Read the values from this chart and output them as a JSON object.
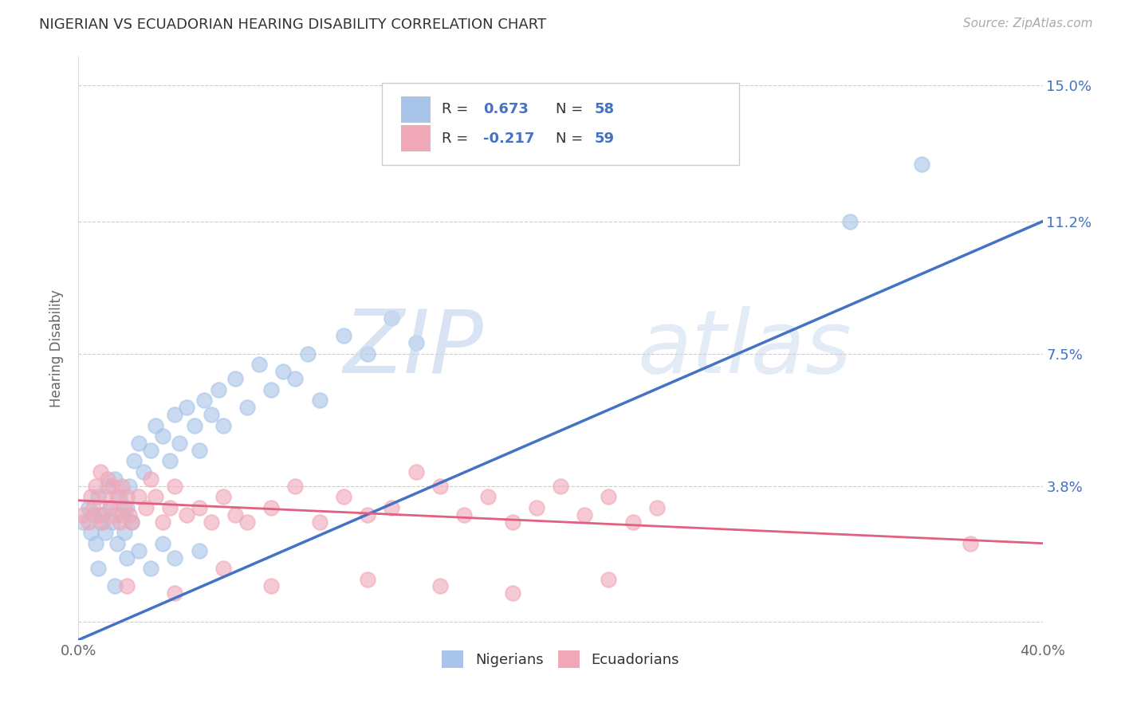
{
  "title": "NIGERIAN VS ECUADORIAN HEARING DISABILITY CORRELATION CHART",
  "source": "Source: ZipAtlas.com",
  "ylabel": "Hearing Disability",
  "xmin": 0.0,
  "xmax": 0.4,
  "ymin": -0.005,
  "ymax": 0.158,
  "yticks": [
    0.0,
    0.038,
    0.075,
    0.112,
    0.15
  ],
  "ytick_labels": [
    "",
    "3.8%",
    "7.5%",
    "11.2%",
    "15.0%"
  ],
  "xtick_labels": [
    "0.0%",
    "40.0%"
  ],
  "background_color": "#ffffff",
  "grid_color": "#cccccc",
  "nigerian_color": "#a8c4e8",
  "ecuadorian_color": "#f0a8b8",
  "blue_line_color": "#4472c4",
  "pink_line_color": "#e06080",
  "watermark_color": "#c8d8f0",
  "legend_R_N_color": "#4472c4",
  "R_text_color": "#333333",
  "R_nigerian": 0.673,
  "N_nigerian": 58,
  "R_ecuadorian": -0.217,
  "N_ecuadorian": 59,
  "nigerian_scatter": [
    [
      0.002,
      0.028
    ],
    [
      0.004,
      0.032
    ],
    [
      0.005,
      0.025
    ],
    [
      0.006,
      0.03
    ],
    [
      0.007,
      0.022
    ],
    [
      0.008,
      0.035
    ],
    [
      0.009,
      0.028
    ],
    [
      0.01,
      0.03
    ],
    [
      0.011,
      0.025
    ],
    [
      0.012,
      0.038
    ],
    [
      0.013,
      0.032
    ],
    [
      0.014,
      0.028
    ],
    [
      0.015,
      0.04
    ],
    [
      0.016,
      0.022
    ],
    [
      0.017,
      0.035
    ],
    [
      0.018,
      0.03
    ],
    [
      0.019,
      0.025
    ],
    [
      0.02,
      0.032
    ],
    [
      0.021,
      0.038
    ],
    [
      0.022,
      0.028
    ],
    [
      0.023,
      0.045
    ],
    [
      0.025,
      0.05
    ],
    [
      0.027,
      0.042
    ],
    [
      0.03,
      0.048
    ],
    [
      0.032,
      0.055
    ],
    [
      0.035,
      0.052
    ],
    [
      0.038,
      0.045
    ],
    [
      0.04,
      0.058
    ],
    [
      0.042,
      0.05
    ],
    [
      0.045,
      0.06
    ],
    [
      0.048,
      0.055
    ],
    [
      0.05,
      0.048
    ],
    [
      0.052,
      0.062
    ],
    [
      0.055,
      0.058
    ],
    [
      0.058,
      0.065
    ],
    [
      0.06,
      0.055
    ],
    [
      0.065,
      0.068
    ],
    [
      0.07,
      0.06
    ],
    [
      0.075,
      0.072
    ],
    [
      0.08,
      0.065
    ],
    [
      0.085,
      0.07
    ],
    [
      0.09,
      0.068
    ],
    [
      0.095,
      0.075
    ],
    [
      0.1,
      0.062
    ],
    [
      0.11,
      0.08
    ],
    [
      0.12,
      0.075
    ],
    [
      0.13,
      0.085
    ],
    [
      0.14,
      0.078
    ],
    [
      0.008,
      0.015
    ],
    [
      0.015,
      0.01
    ],
    [
      0.02,
      0.018
    ],
    [
      0.025,
      0.02
    ],
    [
      0.03,
      0.015
    ],
    [
      0.035,
      0.022
    ],
    [
      0.04,
      0.018
    ],
    [
      0.05,
      0.02
    ],
    [
      0.32,
      0.112
    ],
    [
      0.35,
      0.128
    ]
  ],
  "ecuadorian_scatter": [
    [
      0.002,
      0.03
    ],
    [
      0.004,
      0.028
    ],
    [
      0.005,
      0.035
    ],
    [
      0.006,
      0.032
    ],
    [
      0.007,
      0.038
    ],
    [
      0.008,
      0.03
    ],
    [
      0.009,
      0.042
    ],
    [
      0.01,
      0.028
    ],
    [
      0.011,
      0.035
    ],
    [
      0.012,
      0.04
    ],
    [
      0.013,
      0.032
    ],
    [
      0.014,
      0.038
    ],
    [
      0.015,
      0.03
    ],
    [
      0.016,
      0.035
    ],
    [
      0.017,
      0.028
    ],
    [
      0.018,
      0.038
    ],
    [
      0.019,
      0.032
    ],
    [
      0.02,
      0.035
    ],
    [
      0.021,
      0.03
    ],
    [
      0.022,
      0.028
    ],
    [
      0.025,
      0.035
    ],
    [
      0.028,
      0.032
    ],
    [
      0.03,
      0.04
    ],
    [
      0.032,
      0.035
    ],
    [
      0.035,
      0.028
    ],
    [
      0.038,
      0.032
    ],
    [
      0.04,
      0.038
    ],
    [
      0.045,
      0.03
    ],
    [
      0.05,
      0.032
    ],
    [
      0.055,
      0.028
    ],
    [
      0.06,
      0.035
    ],
    [
      0.065,
      0.03
    ],
    [
      0.07,
      0.028
    ],
    [
      0.08,
      0.032
    ],
    [
      0.09,
      0.038
    ],
    [
      0.1,
      0.028
    ],
    [
      0.11,
      0.035
    ],
    [
      0.12,
      0.03
    ],
    [
      0.13,
      0.032
    ],
    [
      0.14,
      0.042
    ],
    [
      0.15,
      0.038
    ],
    [
      0.16,
      0.03
    ],
    [
      0.17,
      0.035
    ],
    [
      0.18,
      0.028
    ],
    [
      0.19,
      0.032
    ],
    [
      0.2,
      0.038
    ],
    [
      0.21,
      0.03
    ],
    [
      0.22,
      0.035
    ],
    [
      0.23,
      0.028
    ],
    [
      0.24,
      0.032
    ],
    [
      0.02,
      0.01
    ],
    [
      0.04,
      0.008
    ],
    [
      0.06,
      0.015
    ],
    [
      0.08,
      0.01
    ],
    [
      0.12,
      0.012
    ],
    [
      0.15,
      0.01
    ],
    [
      0.18,
      0.008
    ],
    [
      0.22,
      0.012
    ],
    [
      0.37,
      0.022
    ]
  ],
  "nigerian_line": [
    [
      0.0,
      -0.005
    ],
    [
      0.4,
      0.112
    ]
  ],
  "ecuadorian_line": [
    [
      0.0,
      0.034
    ],
    [
      0.4,
      0.022
    ]
  ]
}
